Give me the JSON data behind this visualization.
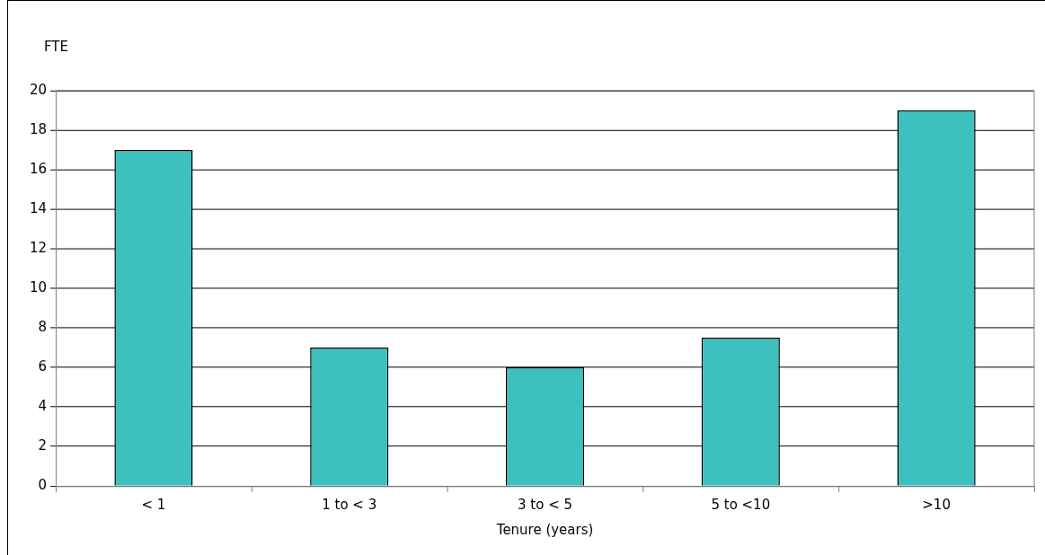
{
  "chart_data": {
    "type": "bar",
    "xlabel": "Tenure (years)",
    "ylabel": "FTE",
    "categories": [
      "< 1",
      "1 to < 3",
      "3 to < 5",
      "5 to <10",
      ">10"
    ],
    "values": [
      17,
      7,
      6,
      7.5,
      19
    ],
    "color": "#3cc0c0",
    "ylim": [
      0,
      20
    ],
    "yticks": [
      0,
      2,
      4,
      6,
      8,
      10,
      12,
      14,
      16,
      18,
      20
    ],
    "grid": "y",
    "legend": false
  }
}
